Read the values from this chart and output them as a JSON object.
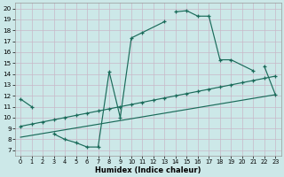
{
  "xlabel": "Humidex (Indice chaleur)",
  "bg_color": "#cce8e8",
  "grid_color": "#b8d8d8",
  "line_color": "#1a6b5a",
  "xlim": [
    -0.5,
    23.5
  ],
  "ylim": [
    6.5,
    20.5
  ],
  "xticks": [
    0,
    1,
    2,
    3,
    4,
    5,
    6,
    7,
    8,
    9,
    10,
    11,
    12,
    13,
    14,
    15,
    16,
    17,
    18,
    19,
    20,
    21,
    22,
    23
  ],
  "yticks": [
    7,
    8,
    9,
    10,
    11,
    12,
    13,
    14,
    15,
    16,
    17,
    18,
    19,
    20
  ],
  "line1_x": [
    0,
    1,
    3,
    4,
    5,
    6,
    7,
    8,
    9,
    10,
    11,
    13,
    14,
    15,
    16,
    17,
    18,
    19,
    21,
    22,
    23
  ],
  "line1_y": [
    11.7,
    11.0,
    8.5,
    8.0,
    7.7,
    7.3,
    7.3,
    14.2,
    10.0,
    17.3,
    17.8,
    18.8,
    19.7,
    19.8,
    19.3,
    19.3,
    15.3,
    15.3,
    14.3,
    14.7,
    12.1
  ],
  "line2_x": [
    0,
    1,
    2,
    3,
    4,
    5,
    6,
    7,
    8,
    9,
    10,
    11,
    12,
    13,
    14,
    15,
    16,
    17,
    18,
    19,
    20,
    21,
    22,
    23
  ],
  "line2_y": [
    9.2,
    9.4,
    9.6,
    9.8,
    10.0,
    10.2,
    10.4,
    10.6,
    10.8,
    11.0,
    11.2,
    11.4,
    11.6,
    11.8,
    12.0,
    12.2,
    12.4,
    12.6,
    12.8,
    13.0,
    13.2,
    13.4,
    13.6,
    13.8
  ],
  "line3_x": [
    0,
    23
  ],
  "line3_y": [
    8.2,
    12.1
  ]
}
